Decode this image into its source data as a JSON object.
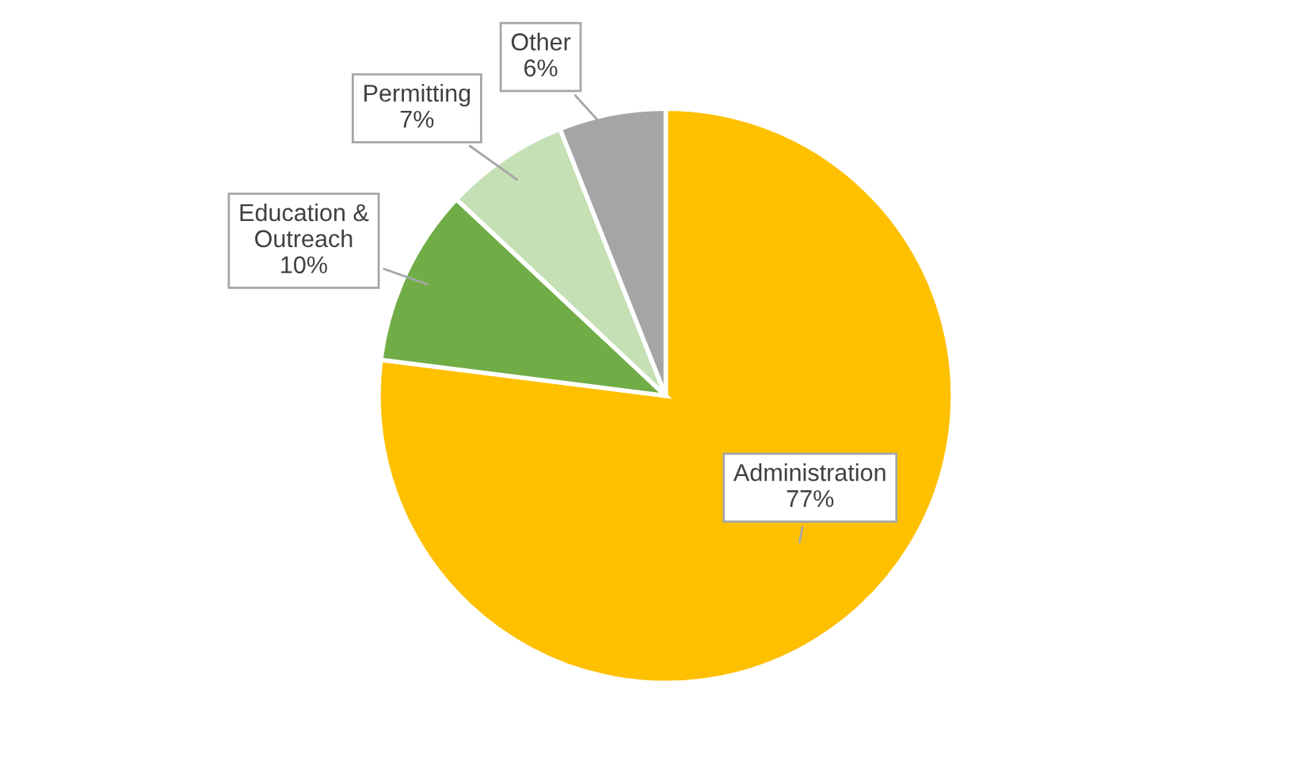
{
  "chart_data": {
    "type": "pie",
    "categories": [
      "Administration",
      "Education &\nOutreach",
      "Permitting",
      "Other"
    ],
    "values": [
      77,
      10,
      7,
      6
    ],
    "value_labels": [
      "77%",
      "10%",
      "7%",
      "6%"
    ],
    "colors": [
      "#ffc000",
      "#70ad47",
      "#c5e0b4",
      "#a5a5a5"
    ],
    "legend": false
  }
}
